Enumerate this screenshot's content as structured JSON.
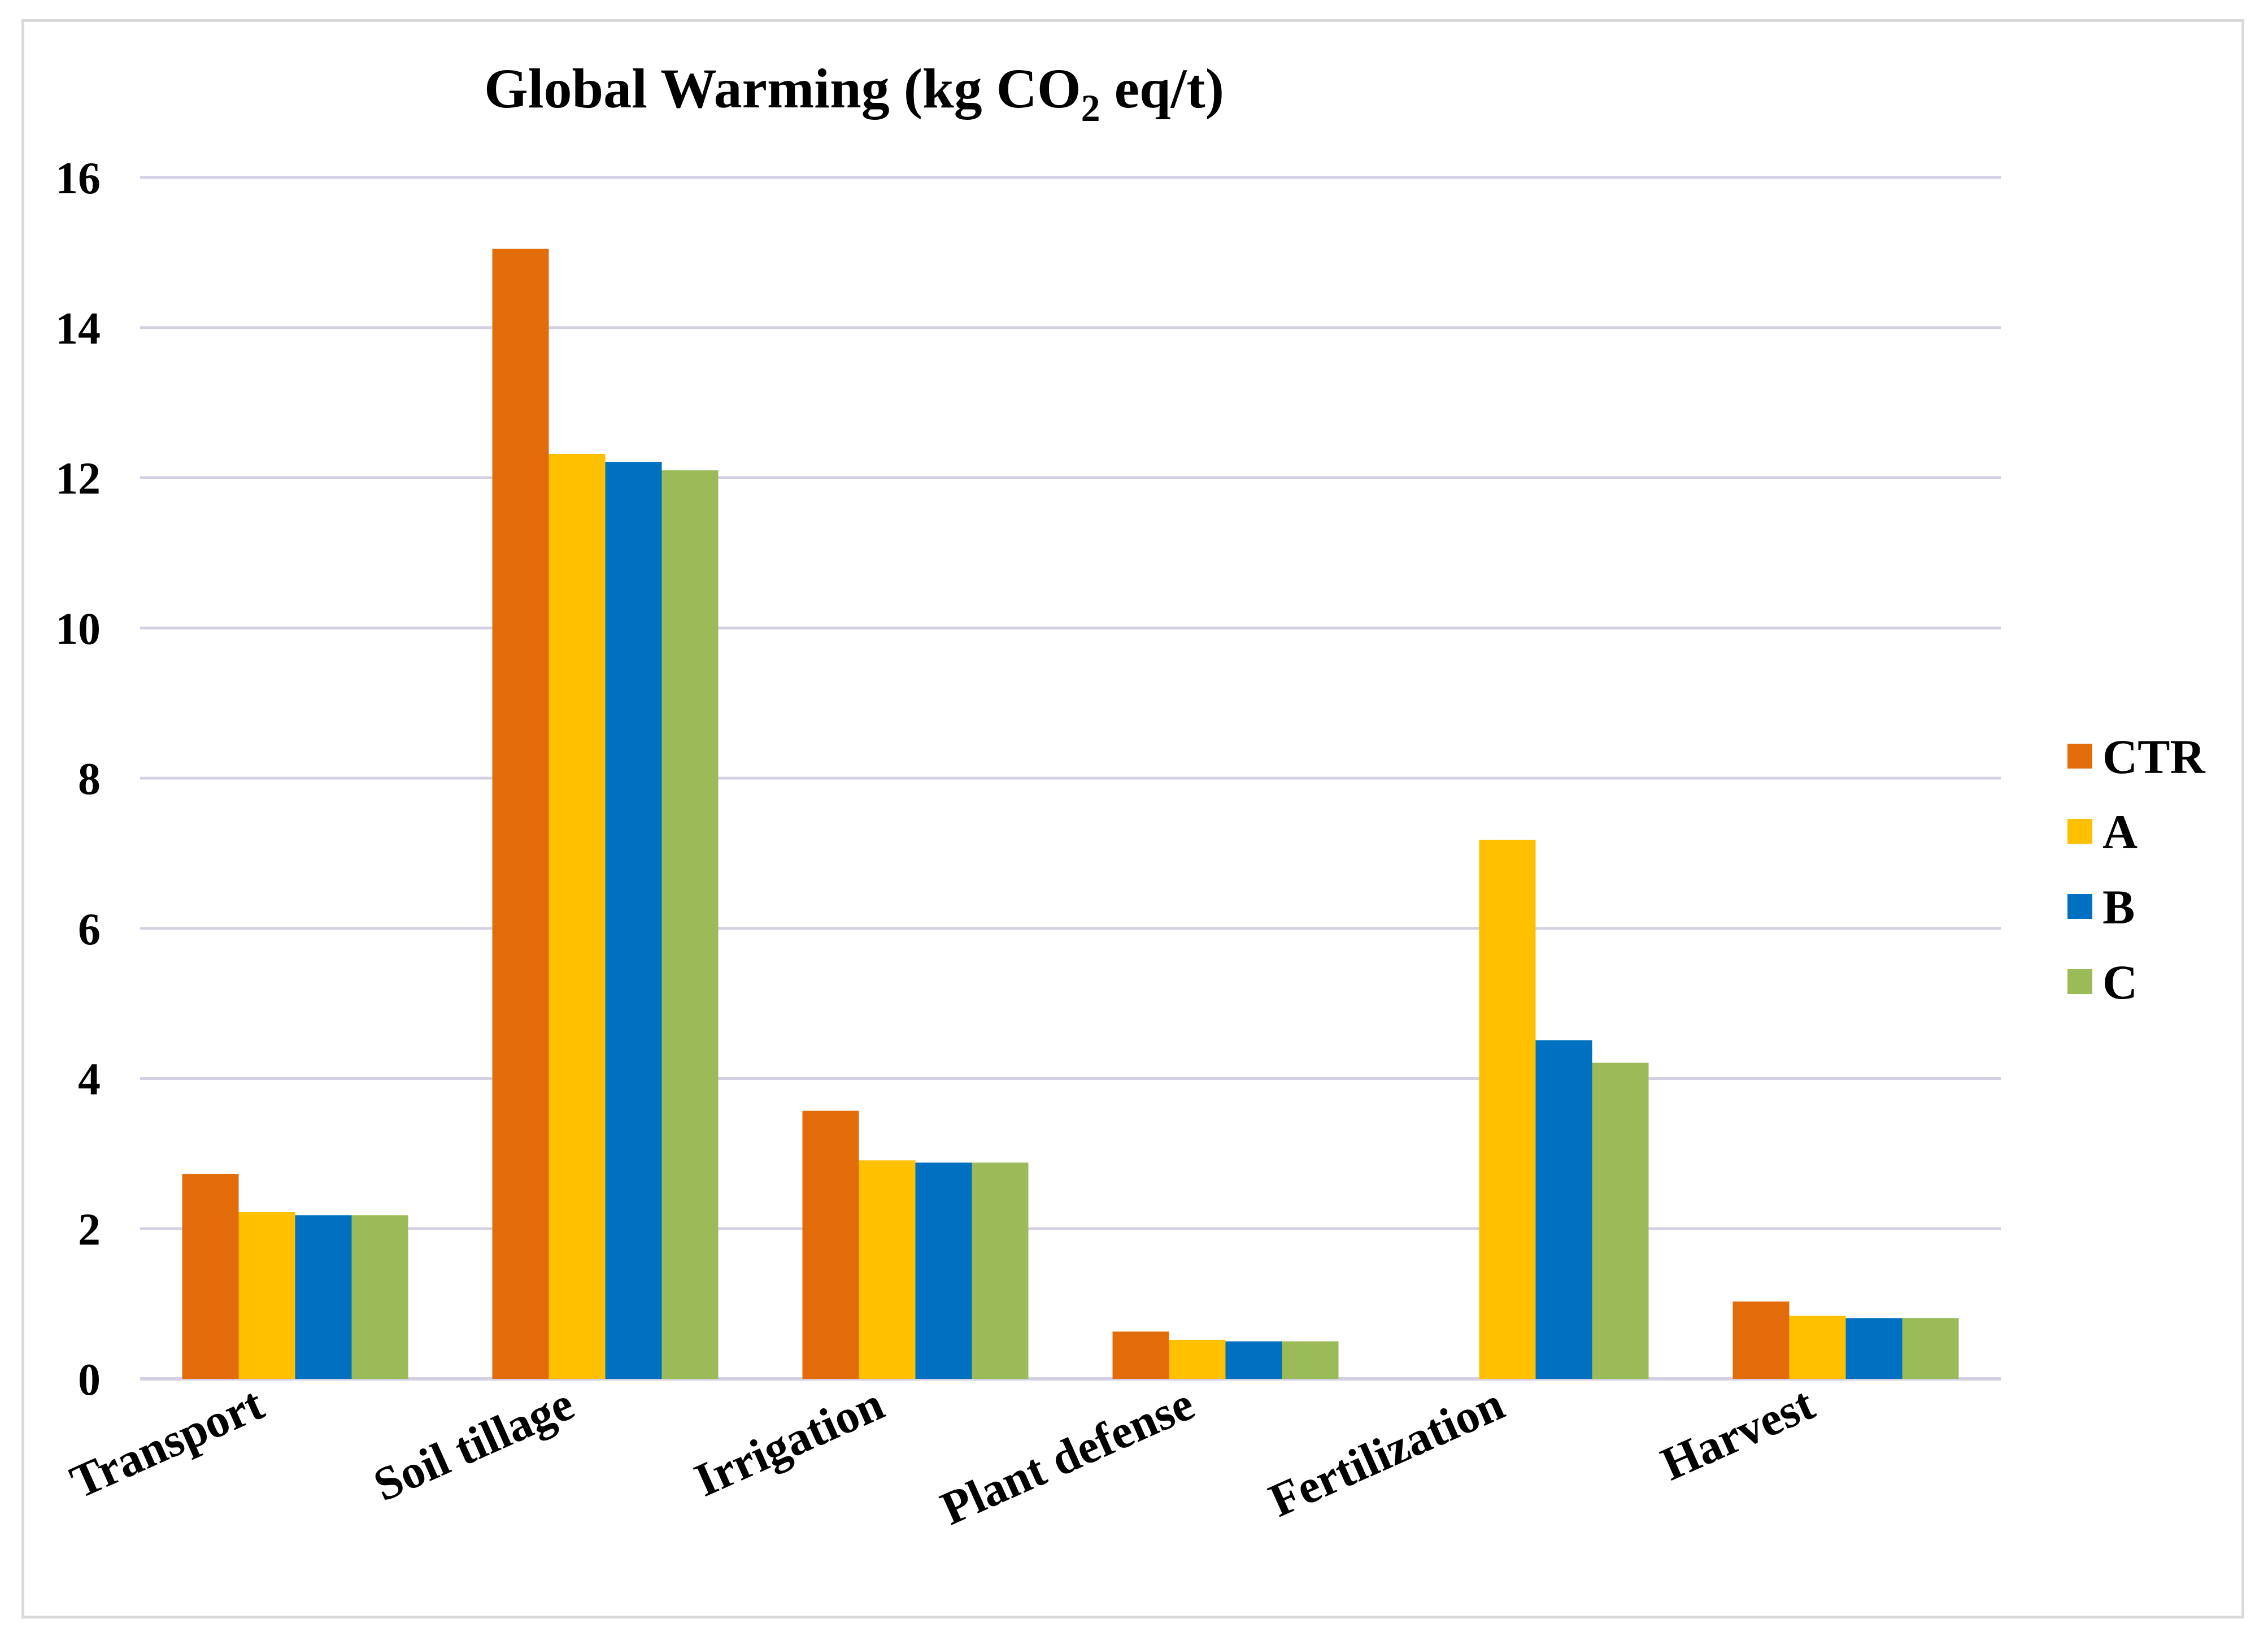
{
  "chart_data": {
    "type": "bar",
    "title": {
      "main": "Global Warming (kg CO",
      "subscript": "2",
      "suffix": " eq/t)"
    },
    "xlabel": "",
    "ylabel": "",
    "ylim": [
      0,
      16
    ],
    "yticks": [
      0,
      2,
      4,
      6,
      8,
      10,
      12,
      14,
      16
    ],
    "grid": true,
    "legend_position": "right",
    "categories": [
      "Transport",
      "Soil tillage",
      "Irrigation",
      "Plant defense",
      "Fertilization",
      "Harvest"
    ],
    "series": [
      {
        "name": "CTR",
        "color": "#e36c0a",
        "values": [
          2.73,
          15.05,
          3.57,
          0.63,
          0,
          1.03
        ]
      },
      {
        "name": "A",
        "color": "#ffc000",
        "values": [
          2.22,
          12.32,
          2.91,
          0.52,
          7.18,
          0.84
        ]
      },
      {
        "name": "B",
        "color": "#0070c0",
        "values": [
          2.18,
          12.21,
          2.88,
          0.5,
          4.51,
          0.81
        ]
      },
      {
        "name": "C",
        "color": "#9bbb59",
        "values": [
          2.18,
          12.1,
          2.88,
          0.5,
          4.21,
          0.81
        ]
      }
    ]
  }
}
